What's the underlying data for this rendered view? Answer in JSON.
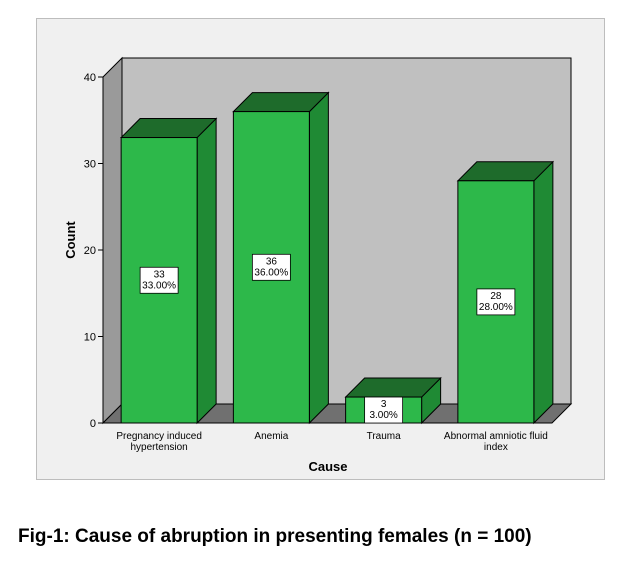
{
  "chart_data": {
    "type": "bar",
    "categories": [
      [
        "Pregnancy induced",
        "hypertension"
      ],
      [
        "Anemia"
      ],
      [
        "Trauma"
      ],
      [
        "Abnormal amniotic fluid",
        "index"
      ]
    ],
    "values": [
      33,
      36,
      3,
      28
    ],
    "data_labels": [
      [
        "33",
        "33.00%"
      ],
      [
        "36",
        "36.00%"
      ],
      [
        "3",
        "3.00%"
      ],
      [
        "28",
        "28.00%"
      ]
    ],
    "xlabel": "Cause",
    "ylabel": "Count",
    "ylim": [
      0,
      40
    ],
    "yticks": [
      0,
      10,
      20,
      30,
      40
    ],
    "grid": false,
    "legend": "none",
    "style": "3d",
    "colors": {
      "bar_front": "#2db84a",
      "bar_top": "#1e6b2b",
      "bar_side": "#1f8a34",
      "back_wall": "#c0c0c0",
      "side_wall": "#9a9a9a",
      "floor": "#707070",
      "frame_bg": "#f0f0f0"
    }
  },
  "caption": "Fig-1: Cause of abruption in presenting females (n = 100)"
}
